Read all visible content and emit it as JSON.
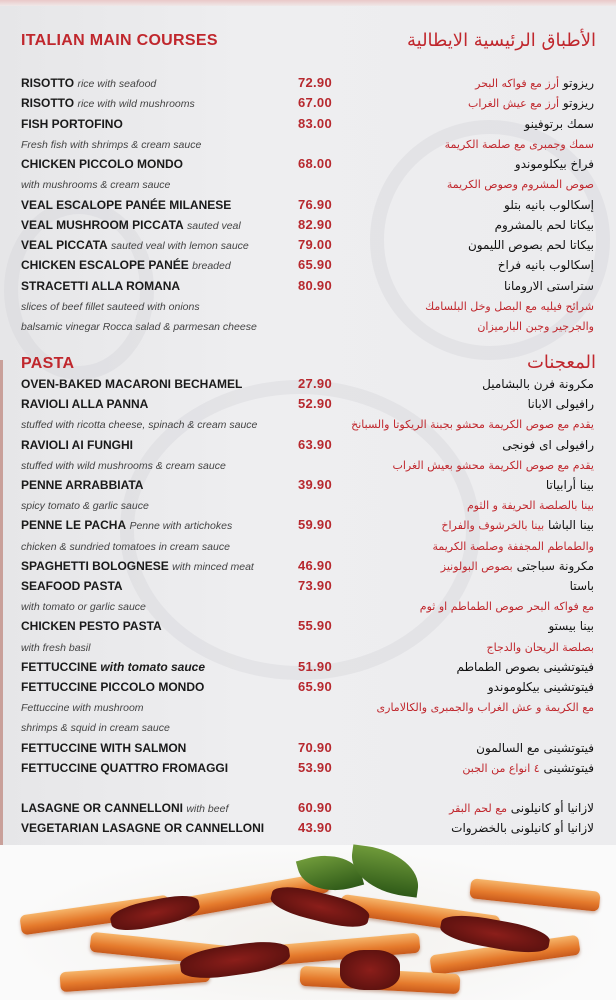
{
  "main": {
    "title_en": "ITALIAN MAIN COURSES",
    "title_ar": "الأطباق الرئيسية الايطالية",
    "rows": [
      {
        "en": "RISOTTO",
        "en_note": "rice with seafood",
        "price": "72.90",
        "ar": "ريزوتو",
        "ar_note": "أرز مع فواكه البحر"
      },
      {
        "en": "RISOTTO",
        "en_note": "rice with wild mushrooms",
        "price": "67.00",
        "ar": "ريزوتو",
        "ar_note": "أرز مع عيش الغراب"
      },
      {
        "en": "FISH PORTOFINO",
        "price": "83.00",
        "ar": "سمك برتوفينو"
      },
      {
        "en_note": "Fresh fish with shrimps & cream sauce",
        "ar_note": "سمك وجمبرى مع صلصة الكريمة"
      },
      {
        "en": "CHICKEN PICCOLO MONDO",
        "price": "68.00",
        "ar": "فراخ بيكلوموندو"
      },
      {
        "en_note": "with mushrooms & cream sauce",
        "ar_note": "صوص المشروم وصوص الكريمة"
      },
      {
        "en": "VEAL ESCALOPE PANÉE MILANESE",
        "price": "76.90",
        "ar": "إسكالوب بانيه بتلو"
      },
      {
        "en": "VEAL MUSHROOM PICCATA",
        "en_note": "sauted veal",
        "price": "82.90",
        "ar": "بيكاتا لحم بالمشروم"
      },
      {
        "en": "VEAL PICCATA",
        "en_note": "sauted veal with lemon sauce",
        "price": "79.00",
        "ar": "بيكاتا لحم بصوص الليمون"
      },
      {
        "en": "CHICKEN ESCALOPE PANÉE",
        "en_note": "breaded",
        "price": "65.90",
        "ar": "إسكالوب بانيه فراخ"
      },
      {
        "en": "STRACETTI ALLA ROMANA",
        "price": "80.90",
        "ar": "ستراستى الارومانا"
      },
      {
        "en_note": "slices of beef fillet sauteed with onions",
        "ar_note": "شرائح فيليه مع البصل وخل البلسامك"
      },
      {
        "en_note": "balsamic vinegar Rocca salad & parmesan cheese",
        "ar_note": "والجرجير وجبن البارميزان"
      }
    ]
  },
  "pasta": {
    "title_en": "PASTA",
    "title_ar": "المعجنات",
    "rows": [
      {
        "en": "OVEN-BAKED MACARONI BECHAMEL",
        "price": "27.90",
        "ar": "مكرونة فرن بالبشاميل"
      },
      {
        "en": "RAVIOLI ALLA PANNA",
        "price": "52.90",
        "ar": "رافيولى الابانا"
      },
      {
        "en_note": "stuffed with ricotta cheese, spinach & cream sauce",
        "ar_note": "يقدم مع صوص الكريمة محشو بجبنة الريكوتا والسبانخ"
      },
      {
        "en": "RAVIOLI AI FUNGHI",
        "price": "63.90",
        "ar": "رافيولى اى فونجى"
      },
      {
        "en_note": "stuffed with wild mushrooms & cream sauce",
        "ar_note": "يقدم مع صوص الكريمة محشو بعيش الغراب"
      },
      {
        "en": "PENNE ARRABBIATA",
        "price": "39.90",
        "ar": "بينا أرابياتا"
      },
      {
        "en_note": "spicy tomato & garlic sauce",
        "ar_note": "بينا بالصلصة الحريفة و الثوم"
      },
      {
        "en": "PENNE LE PACHA",
        "en_note": "Penne with artichokes",
        "price": "59.90",
        "ar": "بينا الباشا",
        "ar_note": "بينا بالخرشوف والفراخ"
      },
      {
        "en_note": "chicken & sundried tomatoes in cream sauce",
        "ar_note": "والطماطم المجففة وصلصة الكريمة"
      },
      {
        "en": "SPAGHETTI BOLOGNESE",
        "en_note": "with minced meat",
        "price": "46.90",
        "ar": "مكرونة سباجتى",
        "ar_note": "بصوص البولونيز"
      },
      {
        "en": "SEAFOOD PASTA",
        "price": "73.90",
        "ar": "باستا"
      },
      {
        "en_note": "with tomato or garlic sauce",
        "ar_note": "مع فواكه البحر  صوص الطماطم او ثوم"
      },
      {
        "en": "CHICKEN PESTO PASTA",
        "price": "55.90",
        "ar": "بينا بيستو"
      },
      {
        "en_note": "with fresh basil",
        "ar_note": "بصلصة الريحان والدجاج"
      },
      {
        "en": "FETTUCCINE",
        "en_note_bold": "with tomato sauce",
        "price": "51.90",
        "ar": "فيتوتشينى بصوص الطماطم"
      },
      {
        "en": "FETTUCCINE PICCOLO MONDO",
        "price": "65.90",
        "ar": "فيتوتشينى بيكلوموندو"
      },
      {
        "en_note": "Fettuccine with mushroom",
        "ar_note": "مع الكريمة و عش الغراب والجمبرى والكالامارى"
      },
      {
        "en_note": " shrimps & squid in cream sauce"
      },
      {
        "en": "FETTUCCINE WITH SALMON",
        "price": "70.90",
        "ar": "فيتوتشينى مع السالمون"
      },
      {
        "en": "FETTUCCINE QUATTRO FROMAGGI",
        "price": "53.90",
        "ar": "فيتوتشينى",
        "ar_note": "٤ انواع من الجبن"
      },
      {},
      {
        "en": "LASAGNE OR CANNELLONI",
        "en_note": "with beef",
        "price": "60.90",
        "ar": "لازانيا  أو كانيلونى",
        "ar_note": "مع لحم البقر"
      },
      {
        "en": "VEGETARIAN LASAGNE OR CANNELLONI",
        "price": "43.90",
        "ar": "لازانيا أو كانيلونى بالخضروات"
      }
    ]
  },
  "colors": {
    "accent": "#c0272d",
    "price": "#b7282e",
    "background": "#ececee"
  }
}
